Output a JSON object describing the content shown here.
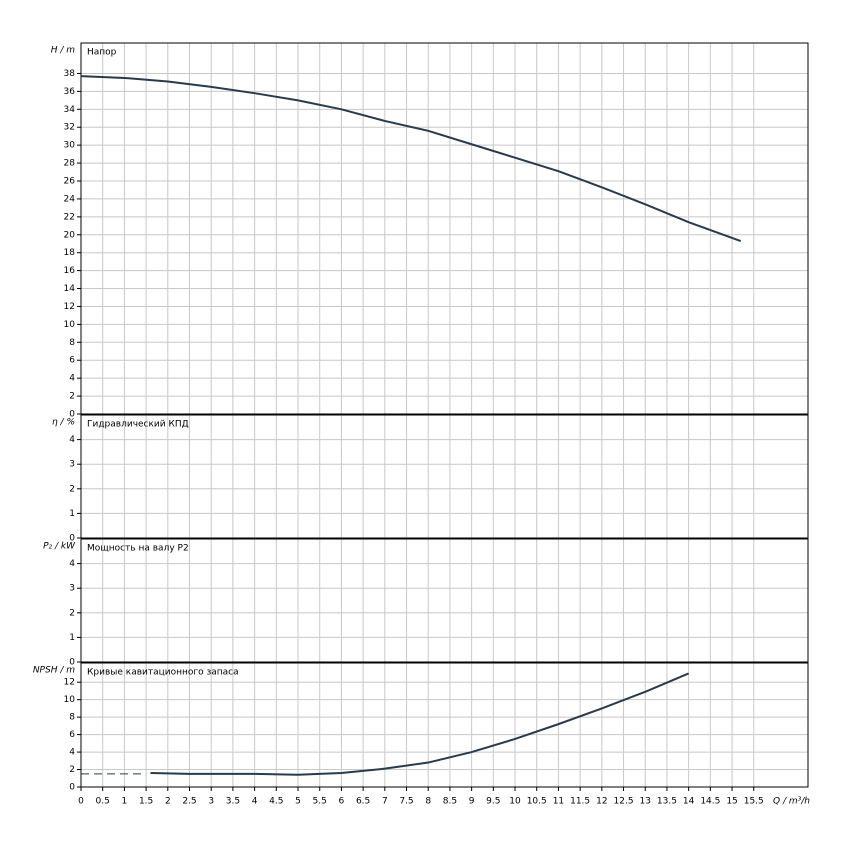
{
  "chart_data": [
    {
      "type": "line",
      "title": "Напор",
      "y_label": "H / m",
      "xlim": [
        0,
        16.75
      ],
      "ylim": [
        0,
        41.4
      ],
      "yticks": [
        0,
        2,
        4,
        6,
        8,
        10,
        12,
        14,
        16,
        18,
        20,
        22,
        24,
        26,
        28,
        30,
        32,
        34,
        36,
        38
      ],
      "grid": true,
      "series": [
        {
          "color": "#2b3a4a",
          "dashed": false,
          "x": [
            0,
            1,
            2,
            3,
            4,
            5,
            6,
            7,
            8,
            9,
            10,
            11,
            12,
            13,
            14,
            15.2
          ],
          "values": [
            37.7,
            37.5,
            37.1,
            36.5,
            35.8,
            35.0,
            34.0,
            32.7,
            31.6,
            30.1,
            28.6,
            27.1,
            25.3,
            23.4,
            21.4,
            19.3
          ]
        }
      ]
    },
    {
      "type": "line",
      "title": "Гидравлический КПД",
      "y_label": "η / %",
      "xlim": [
        0,
        16.75
      ],
      "ylim": [
        0,
        5
      ],
      "yticks": [
        0,
        1,
        2,
        3,
        4
      ],
      "grid": true,
      "series": []
    },
    {
      "type": "line",
      "title": "Мощность на валу P2",
      "y_label": "P₂ / kW",
      "xlim": [
        0,
        16.75
      ],
      "ylim": [
        0,
        5
      ],
      "yticks": [
        0,
        1,
        2,
        3,
        4
      ],
      "grid": true,
      "series": []
    },
    {
      "type": "line",
      "title": "Кривые кавитационного запаса",
      "y_label": "NPSH / m",
      "x_label": "Q / m³/h",
      "xlim": [
        0,
        16.75
      ],
      "ylim": [
        0,
        14.2
      ],
      "yticks": [
        0,
        2,
        4,
        6,
        8,
        10,
        12
      ],
      "xticks": [
        0,
        0.5,
        1,
        1.5,
        2,
        2.5,
        3,
        3.5,
        4,
        4.5,
        5,
        5.5,
        6,
        6.5,
        7,
        7.5,
        8,
        8.5,
        9,
        9.5,
        10,
        10.5,
        11,
        11.5,
        12,
        12.5,
        13,
        13.5,
        14,
        14.5,
        15,
        15.5
      ],
      "grid": true,
      "series": [
        {
          "color": "#2b3a4a",
          "dashed": true,
          "x": [
            0,
            1.5
          ],
          "values": [
            1.5,
            1.5
          ]
        },
        {
          "color": "#2b3a4a",
          "dashed": false,
          "x": [
            1.6,
            2.5,
            3,
            4,
            5,
            6,
            7,
            8,
            9,
            10,
            11,
            12,
            13,
            14
          ],
          "values": [
            1.6,
            1.5,
            1.5,
            1.5,
            1.4,
            1.6,
            2.1,
            2.8,
            4.0,
            5.5,
            7.2,
            9.0,
            10.9,
            13.0
          ]
        }
      ]
    }
  ]
}
